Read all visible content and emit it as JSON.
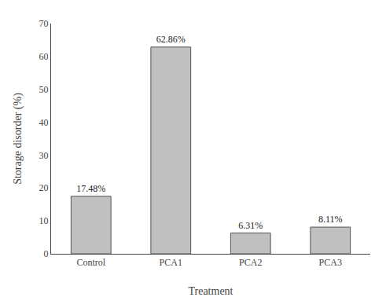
{
  "chart_data": {
    "type": "bar",
    "categories": [
      "Control",
      "PCA1",
      "PCA2",
      "PCA3"
    ],
    "values": [
      17.48,
      62.86,
      6.31,
      8.11
    ],
    "value_labels": [
      "17.48%",
      "62.86%",
      "6.31%",
      "8.11%"
    ],
    "data_labels": true,
    "color": "#c0c0c0",
    "xlabel": "Treatment",
    "ylabel": "Storage disorder (%)",
    "ylim": [
      0,
      70
    ],
    "yticks": [
      0,
      10,
      20,
      30,
      40,
      50,
      60,
      70
    ],
    "grid": false
  }
}
